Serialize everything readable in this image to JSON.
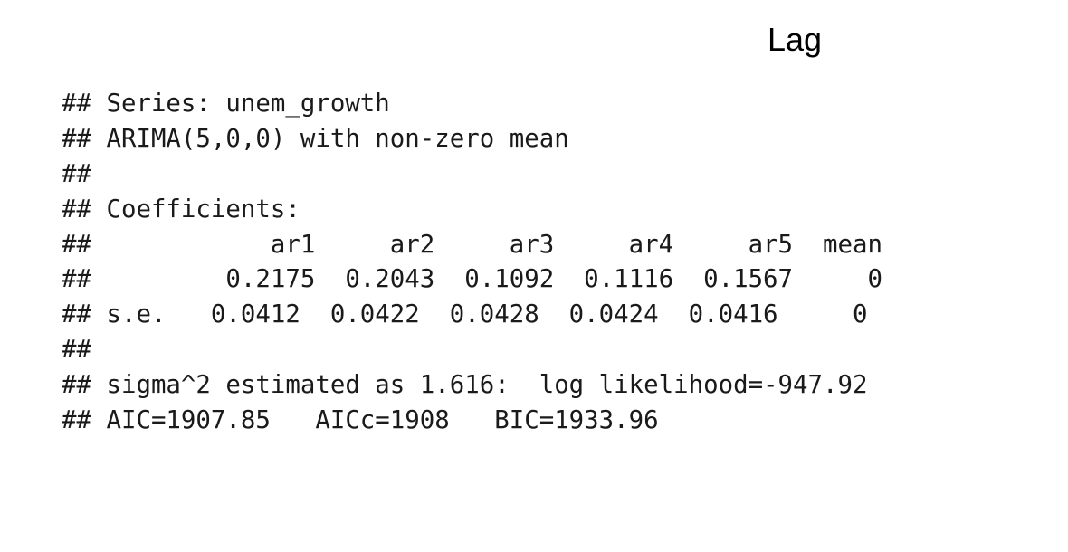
{
  "heading": "Lag",
  "output_lines": [
    "## Series: unem_growth",
    "## ARIMA(5,0,0) with non-zero mean",
    "##",
    "## Coefficients:",
    "##            ar1     ar2     ar3     ar4     ar5  mean",
    "##         0.2175  0.2043  0.1092  0.1116  0.1567     0",
    "## s.e.   0.0412  0.0422  0.0428  0.0424  0.0416     0",
    "##",
    "## sigma^2 estimated as 1.616:  log likelihood=-947.92",
    "## AIC=1907.85   AICc=1908   BIC=1933.96"
  ]
}
